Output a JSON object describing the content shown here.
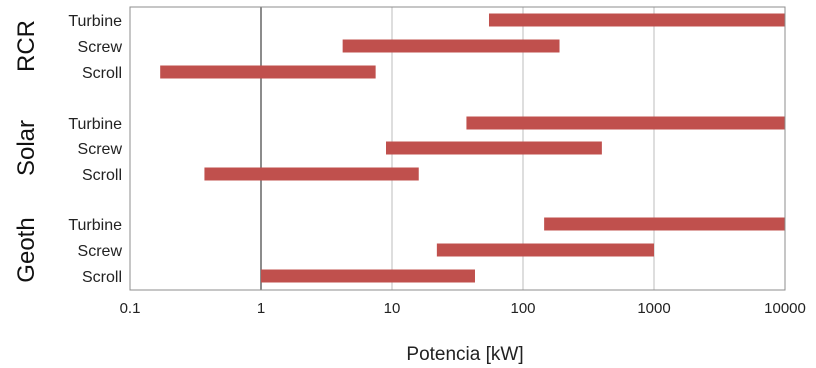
{
  "chart_data": {
    "type": "bar",
    "orientation": "horizontal-range",
    "xlabel": "Potencia [kW]",
    "x_scale": "log",
    "xlim": [
      0.1,
      10000
    ],
    "x_ticks": [
      "0.1",
      "1",
      "10",
      "100",
      "1000",
      "10000"
    ],
    "grid": true,
    "bar_color": "#c0504d",
    "groups": [
      {
        "name": "RCR",
        "items": [
          {
            "label": "Turbine",
            "min": 55,
            "max": 10000
          },
          {
            "label": "Screw",
            "min": 4.2,
            "max": 190
          },
          {
            "label": "Scroll",
            "min": 0.17,
            "max": 7.5
          }
        ]
      },
      {
        "name": "Solar",
        "items": [
          {
            "label": "Turbine",
            "min": 37,
            "max": 10000
          },
          {
            "label": "Screw",
            "min": 9,
            "max": 400
          },
          {
            "label": "Scroll",
            "min": 0.37,
            "max": 16
          }
        ]
      },
      {
        "name": "Geoth",
        "items": [
          {
            "label": "Turbine",
            "min": 145,
            "max": 10000
          },
          {
            "label": "Screw",
            "min": 22,
            "max": 1000
          },
          {
            "label": "Scroll",
            "min": 1,
            "max": 43
          }
        ]
      }
    ]
  }
}
